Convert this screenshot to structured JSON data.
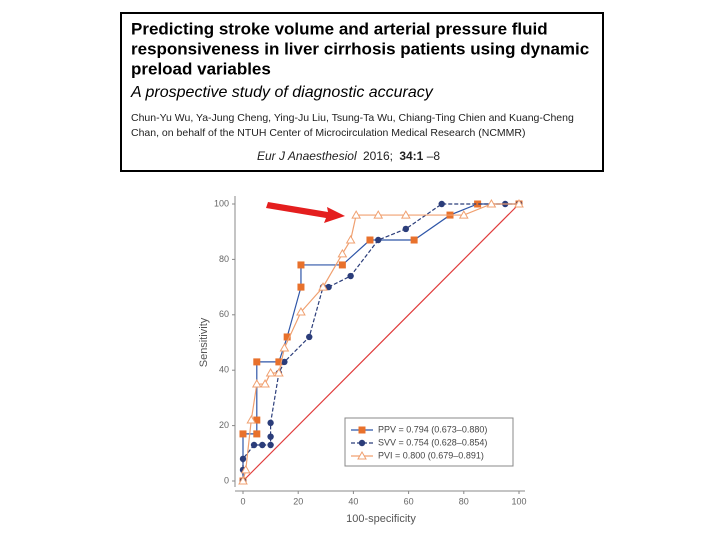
{
  "header": {
    "title_lines": [
      "Predicting stroke volume and arterial pressure fluid",
      "responsiveness in liver cirrhosis patients using dynamic",
      "preload variables"
    ],
    "subtitle": "A prospective study of diagnostic accuracy",
    "author_lines": [
      "Chun-Yu Wu, Ya-Jung Cheng, Ying-Ju Liu, Tsung-Ta Wu, Chiang-Ting Chien and Kuang-Cheng",
      "Chan, on behalf of the NTUH Center of Microcirculation Medical Research (NCMMR)"
    ],
    "citation": {
      "journal": "Eur J Anaesthesiol",
      "year": "2016;",
      "volume": "34:1",
      "pages": "–8"
    }
  },
  "chart_data": {
    "type": "line",
    "xlabel": "100-specificity",
    "ylabel": "Sensitivity",
    "xlim": [
      0,
      100
    ],
    "ylim": [
      0,
      100
    ],
    "xticks": [
      0,
      20,
      40,
      60,
      80,
      100
    ],
    "yticks": [
      0,
      20,
      40,
      60,
      80,
      100
    ],
    "reference_color": "#e03c3c",
    "legend": "lower right",
    "series": [
      {
        "name": "PPV = 0.794 (0.673–0.880)",
        "color": "#2f56a8",
        "marker_color": "#e8712c",
        "marker": "square",
        "linestyle": "solid",
        "x": [
          0,
          0,
          5,
          5,
          5,
          13,
          16,
          21,
          21,
          36,
          46,
          62,
          75,
          85,
          100
        ],
        "values": [
          0,
          17,
          17,
          22,
          43,
          43,
          52,
          70,
          78,
          78,
          87,
          87,
          96,
          100,
          100
        ]
      },
      {
        "name": "SVV = 0.754 (0.628–0.854)",
        "color": "#2b3d7a",
        "marker_color": "#2b3d7a",
        "marker": "circle",
        "linestyle": "dashed",
        "x": [
          0,
          0,
          0,
          4,
          7,
          10,
          10,
          10,
          13,
          15,
          24,
          29,
          31,
          39,
          49,
          59,
          72,
          95,
          100
        ],
        "values": [
          0,
          4,
          8,
          13,
          13,
          13,
          16,
          21,
          39,
          43,
          52,
          70,
          70,
          74,
          87,
          91,
          100,
          100,
          100
        ]
      },
      {
        "name": "PVI = 0.800 (0.679–0.891)",
        "color": "#f0a070",
        "marker_color": "#f0a070",
        "marker": "triangle",
        "linestyle": "solid",
        "x": [
          0,
          1,
          3,
          5,
          8,
          10,
          13,
          15,
          21,
          29,
          36,
          39,
          41,
          49,
          59,
          80,
          90,
          100
        ],
        "values": [
          0,
          4,
          22,
          35,
          35,
          39,
          39,
          48,
          61,
          70,
          82,
          87,
          96,
          96,
          96,
          96,
          100,
          100
        ]
      }
    ]
  }
}
